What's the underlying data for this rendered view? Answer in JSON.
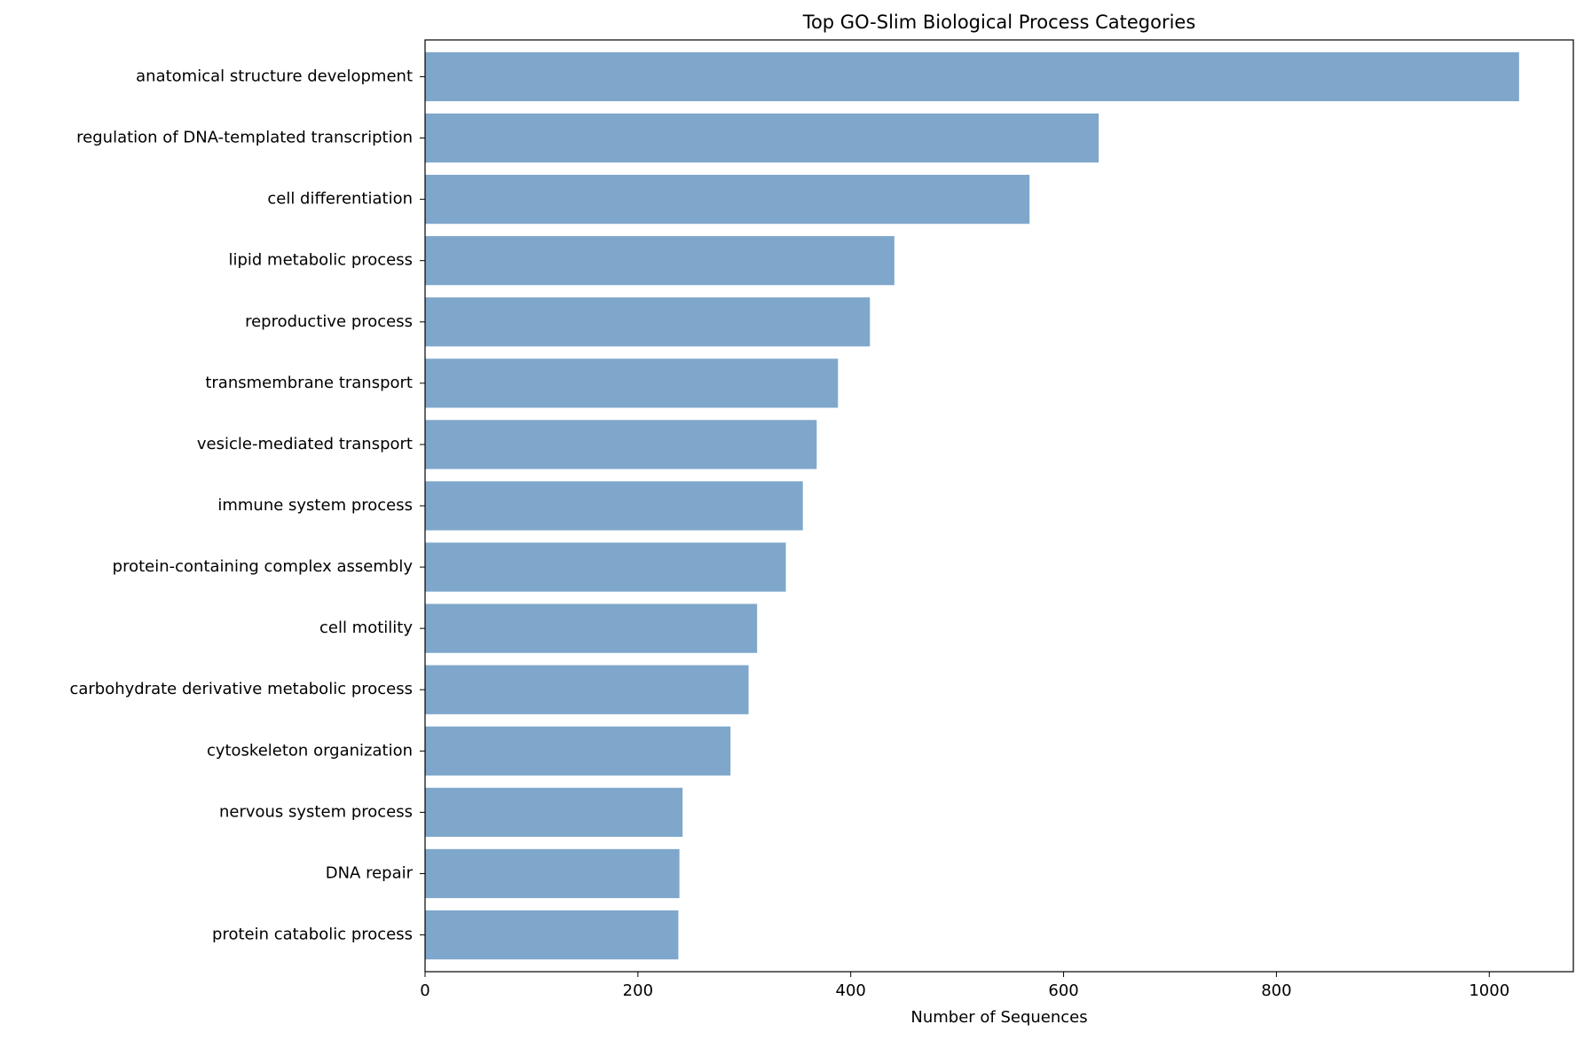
{
  "chart_data": {
    "type": "barh",
    "title": "Top GO-Slim Biological Process Categories",
    "xlabel": "Number of Sequences",
    "categories": [
      "anatomical structure development",
      "regulation of DNA-templated transcription",
      "cell differentiation",
      "lipid metabolic process",
      "reproductive process",
      "transmembrane transport",
      "vesicle-mediated transport",
      "immune system process",
      "protein-containing complex assembly",
      "cell motility",
      "carbohydrate derivative metabolic process",
      "cytoskeleton organization",
      "nervous system process",
      "DNA repair",
      "protein catabolic process"
    ],
    "values": [
      1028,
      633,
      568,
      441,
      418,
      388,
      368,
      355,
      339,
      312,
      304,
      287,
      242,
      239,
      238
    ],
    "color": "#7fa7cb",
    "xlim": [
      0,
      1079
    ],
    "xticks": [
      0,
      200,
      400,
      600,
      800,
      1000
    ]
  }
}
